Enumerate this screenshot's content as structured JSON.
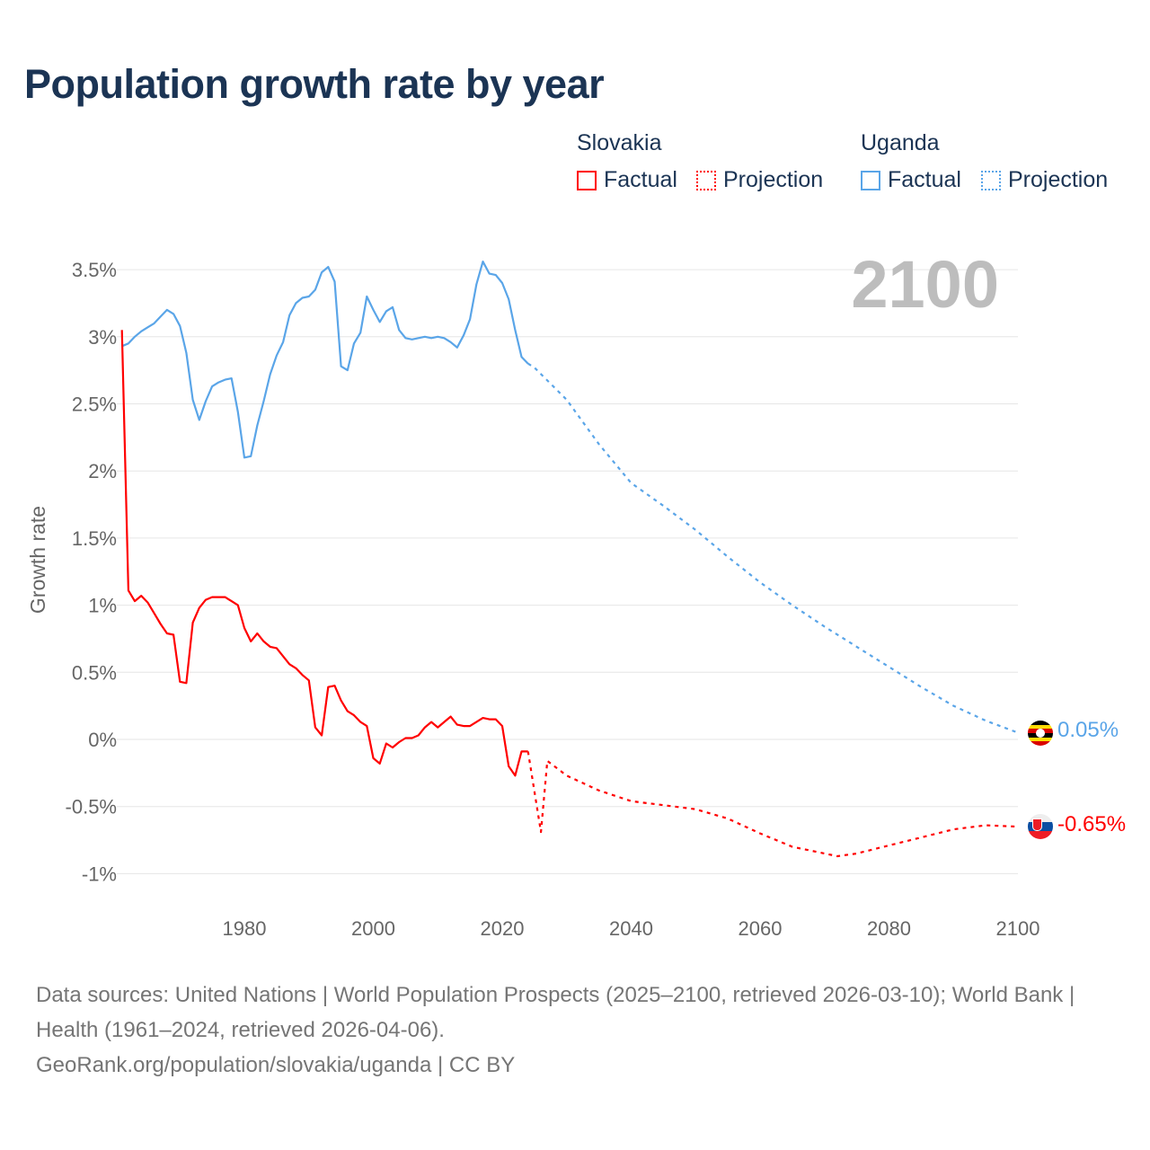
{
  "title": "Population growth rate by year",
  "legend": {
    "groups": [
      {
        "country": "Slovakia",
        "factual": "Factual",
        "projection": "Projection",
        "color": "#ff0000"
      },
      {
        "country": "Uganda",
        "factual": "Factual",
        "projection": "Projection",
        "color": "#5aa5e8"
      }
    ]
  },
  "end_labels": {
    "uganda": "0.05%",
    "slovakia": "-0.65%"
  },
  "year_watermark": "2100",
  "sources": {
    "line1": "Data sources: United Nations | World Population Prospects (2025–2100, retrieved 2026-03-10); World Bank | Health (1961–2024, retrieved 2026-04-06).",
    "line2": "GeoRank.org/population/slovakia/uganda | CC BY"
  },
  "chart_data": {
    "type": "line",
    "title": "Population growth rate by year",
    "xlabel": "",
    "ylabel": "Growth rate",
    "xlim": [
      1961,
      2100
    ],
    "ylim": [
      -1,
      3.5
    ],
    "x_ticks": [
      1980,
      2000,
      2020,
      2040,
      2060,
      2080,
      2100
    ],
    "x_tick_labels": [
      "1980",
      "2000",
      "2020",
      "2040",
      "2060",
      "2080",
      "2100"
    ],
    "y_ticks": [
      3.5,
      3,
      2.5,
      2,
      1.5,
      1,
      0.5,
      0,
      -0.5,
      -1
    ],
    "y_tick_labels": [
      "3.5%",
      "3%",
      "2.5%",
      "2%",
      "1.5%",
      "1%",
      "0.5%",
      "0%",
      "-0.5%",
      "-1%"
    ],
    "grid": true,
    "legend_position": "top-right",
    "series": [
      {
        "name": "Uganda Factual",
        "style": "solid",
        "color": "#5aa5e8",
        "x_start": 1961,
        "values": [
          2.93,
          2.95,
          3.0,
          3.04,
          3.07,
          3.1,
          3.15,
          3.2,
          3.17,
          3.08,
          2.88,
          2.53,
          2.38,
          2.52,
          2.63,
          2.66,
          2.68,
          2.69,
          2.44,
          2.1,
          2.11,
          2.34,
          2.52,
          2.72,
          2.86,
          2.96,
          3.16,
          3.25,
          3.29,
          3.3,
          3.35,
          3.48,
          3.52,
          3.41,
          2.78,
          2.75,
          2.95,
          3.03,
          3.3,
          3.2,
          3.11,
          3.19,
          3.22,
          3.05,
          2.99,
          2.98,
          2.99,
          3.0,
          2.99,
          3.0,
          2.99,
          2.96,
          2.92,
          3.01,
          3.13,
          3.39,
          3.56,
          3.47,
          3.46,
          3.4,
          3.28,
          3.05,
          2.85,
          2.8
        ]
      },
      {
        "name": "Uganda Projection",
        "style": "dotted",
        "color": "#5aa5e8",
        "points": [
          [
            2024,
            2.8
          ],
          [
            2025,
            2.77
          ],
          [
            2030,
            2.53
          ],
          [
            2035,
            2.2
          ],
          [
            2040,
            1.91
          ],
          [
            2045,
            1.74
          ],
          [
            2050,
            1.56
          ],
          [
            2055,
            1.36
          ],
          [
            2060,
            1.17
          ],
          [
            2065,
            1.0
          ],
          [
            2070,
            0.84
          ],
          [
            2075,
            0.69
          ],
          [
            2080,
            0.54
          ],
          [
            2085,
            0.39
          ],
          [
            2090,
            0.25
          ],
          [
            2095,
            0.14
          ],
          [
            2100,
            0.05
          ]
        ]
      },
      {
        "name": "Slovakia Factual",
        "style": "solid",
        "color": "#ff0000",
        "x_start": 1961,
        "values": [
          3.05,
          1.11,
          1.03,
          1.07,
          1.02,
          0.94,
          0.86,
          0.79,
          0.78,
          0.43,
          0.42,
          0.87,
          0.98,
          1.04,
          1.06,
          1.06,
          1.06,
          1.03,
          1.0,
          0.83,
          0.73,
          0.79,
          0.73,
          0.69,
          0.68,
          0.62,
          0.56,
          0.53,
          0.48,
          0.44,
          0.09,
          0.03,
          0.39,
          0.4,
          0.29,
          0.21,
          0.18,
          0.13,
          0.1,
          -0.14,
          -0.18,
          -0.03,
          -0.06,
          -0.02,
          0.01,
          0.01,
          0.03,
          0.09,
          0.13,
          0.09,
          0.13,
          0.17,
          0.11,
          0.1,
          0.1,
          0.13,
          0.16,
          0.15,
          0.15,
          0.1,
          -0.2,
          -0.27,
          -0.09,
          -0.09
        ]
      },
      {
        "name": "Slovakia Projection",
        "style": "dotted",
        "color": "#ff0000",
        "points": [
          [
            2024,
            -0.09
          ],
          [
            2026,
            -0.69
          ],
          [
            2027,
            -0.16
          ],
          [
            2030,
            -0.27
          ],
          [
            2035,
            -0.38
          ],
          [
            2040,
            -0.46
          ],
          [
            2045,
            -0.49
          ],
          [
            2050,
            -0.52
          ],
          [
            2055,
            -0.59
          ],
          [
            2060,
            -0.7
          ],
          [
            2065,
            -0.8
          ],
          [
            2070,
            -0.85
          ],
          [
            2072,
            -0.87
          ],
          [
            2075,
            -0.85
          ],
          [
            2080,
            -0.79
          ],
          [
            2085,
            -0.73
          ],
          [
            2090,
            -0.67
          ],
          [
            2095,
            -0.64
          ],
          [
            2100,
            -0.65
          ]
        ]
      }
    ]
  }
}
